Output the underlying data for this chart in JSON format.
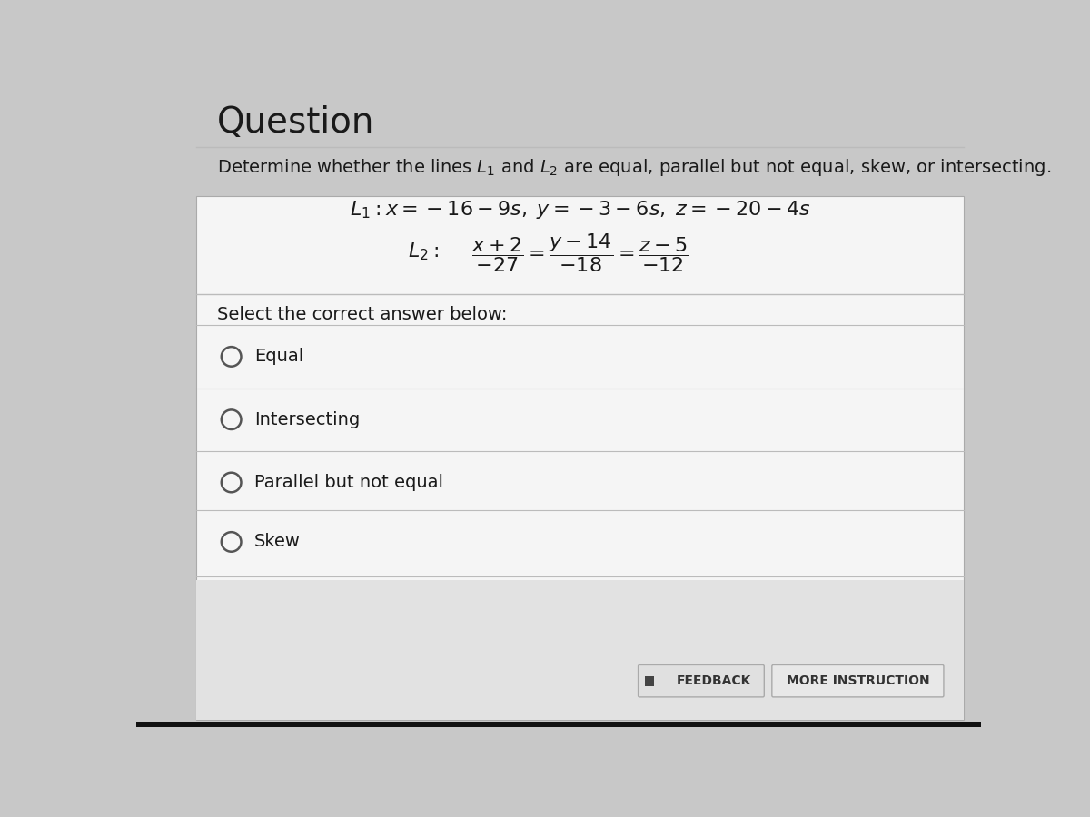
{
  "title": "Question",
  "description": "Determine whether the lines $L_1$ and $L_2$ are equal, parallel but not equal, skew, or intersecting.",
  "select_text": "Select the correct answer below:",
  "options": [
    "Equal",
    "Intersecting",
    "Parallel but not equal",
    "Skew"
  ],
  "feedback_btn": "FEEDBACK",
  "more_btn": "MORE INSTRUCTION",
  "bg_color": "#c8c8c8",
  "panel_color": "#f2f2f2",
  "white_color": "#f5f5f5",
  "text_color": "#1a1a1a",
  "divider_color": "#bbbbbb",
  "btn_bg": "#e0e0e0",
  "btn_text_color": "#333333",
  "radio_color": "#555555",
  "bottom_dark": "#111111"
}
